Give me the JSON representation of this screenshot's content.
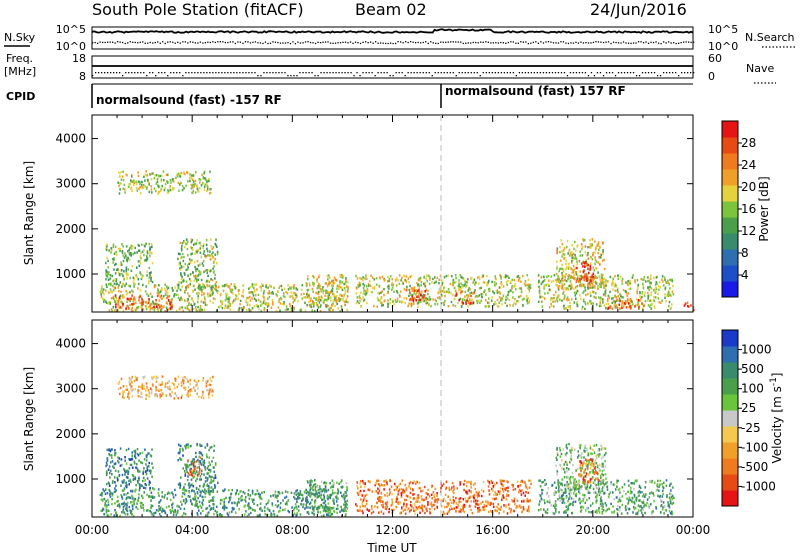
{
  "header": {
    "station": "South Pole Station (fitACF)",
    "beam": "Beam 02",
    "date": "24/Jun/2016"
  },
  "summary": {
    "nsky_label": "N.Sky",
    "nsearch_label": "N.Search",
    "nsky_ticks": [
      "10^5",
      "10^0"
    ],
    "nsearch_ticks": [
      "10^5",
      "10^0"
    ],
    "freq_label_1": "Freq.",
    "freq_label_2": "[MHz]",
    "freq_ticks": [
      "18",
      "8"
    ],
    "nave_label": "Nave",
    "nave_ticks": [
      "60",
      "0"
    ],
    "cpid_label": "CPID",
    "cpid_segments": [
      "normalsound (fast) -157 RF",
      "normalsound (fast) 157 RF"
    ]
  },
  "colors": {
    "power_scale": [
      "#1a1ae6",
      "#1f4fc8",
      "#2f6fb0",
      "#3a8a6e",
      "#4aa04a",
      "#7cc43c",
      "#e6d23c",
      "#f0a028",
      "#f07a1e",
      "#e84a14",
      "#e61414"
    ],
    "velocity_scale": [
      "#e61414",
      "#e84a14",
      "#f07a1e",
      "#f0a028",
      "#f5c850",
      "#c8c8c8",
      "#6ac43c",
      "#4aa04a",
      "#3a8a6e",
      "#2f6fb0",
      "#1a3ac8"
    ]
  },
  "chart_data": [
    {
      "type": "heatmap",
      "xlabel": "",
      "ylabel": "Slant Range [km]",
      "xlim": [
        "00:00",
        "24:00"
      ],
      "ylim": [
        180,
        4500
      ],
      "y_ticks": [
        "4000",
        "3000",
        "2000",
        "1000"
      ],
      "colorbar_label": "Power [dB]",
      "colorbar_ticks": [
        "28",
        "24",
        "20",
        "16",
        "12",
        "8",
        "4"
      ],
      "colorbar_range": [
        0,
        30
      ],
      "regions": [
        {
          "t0": 0.3,
          "t1": 10.2,
          "r0": 200,
          "r1": 800,
          "level": 0.55
        },
        {
          "t0": 0.8,
          "t1": 3.2,
          "r0": 250,
          "r1": 550,
          "level": 0.85
        },
        {
          "t0": 0.5,
          "t1": 2.4,
          "r0": 800,
          "r1": 1700,
          "level": 0.45
        },
        {
          "t0": 3.4,
          "t1": 5.0,
          "r0": 700,
          "r1": 1800,
          "level": 0.5
        },
        {
          "t0": 1.0,
          "t1": 4.8,
          "r0": 2800,
          "r1": 3300,
          "level": 0.55
        },
        {
          "t0": 8.5,
          "t1": 10.2,
          "r0": 300,
          "r1": 1000,
          "level": 0.6
        },
        {
          "t0": 10.5,
          "t1": 17.5,
          "r0": 300,
          "r1": 1000,
          "level": 0.55
        },
        {
          "t0": 12.5,
          "t1": 13.3,
          "r0": 350,
          "r1": 700,
          "level": 0.85
        },
        {
          "t0": 14.5,
          "t1": 15.3,
          "r0": 350,
          "r1": 650,
          "level": 0.85
        },
        {
          "t0": 17.8,
          "t1": 23.2,
          "r0": 250,
          "r1": 1000,
          "level": 0.55
        },
        {
          "t0": 18.5,
          "t1": 20.5,
          "r0": 700,
          "r1": 1800,
          "level": 0.6
        },
        {
          "t0": 19.3,
          "t1": 20.0,
          "r0": 800,
          "r1": 1300,
          "level": 0.9
        },
        {
          "t0": 20.5,
          "t1": 22.0,
          "r0": 250,
          "r1": 500,
          "level": 0.8
        },
        {
          "t0": 23.6,
          "t1": 24.0,
          "r0": 200,
          "r1": 400,
          "level": 0.9
        }
      ]
    },
    {
      "type": "heatmap",
      "xlabel": "Time UT",
      "ylabel": "Slant Range [km]",
      "xlim": [
        "00:00",
        "24:00"
      ],
      "ylim": [
        180,
        4500
      ],
      "x_ticks": [
        "00:00",
        "04:00",
        "08:00",
        "12:00",
        "16:00",
        "20:00",
        "00:00"
      ],
      "y_ticks": [
        "4000",
        "3000",
        "2000",
        "1000"
      ],
      "colorbar_label": "Velocity [m s^-1]",
      "colorbar_ticks": [
        "1000",
        "500",
        "100",
        "25",
        "-25",
        "-100",
        "-500",
        "-1000"
      ],
      "colorbar_range": [
        -1000,
        1000
      ],
      "regions": [
        {
          "t0": 0.3,
          "t1": 10.2,
          "r0": 200,
          "r1": 800,
          "level": 0.72
        },
        {
          "t0": 0.5,
          "t1": 2.4,
          "r0": 800,
          "r1": 1700,
          "level": 0.8
        },
        {
          "t0": 3.4,
          "t1": 5.0,
          "r0": 700,
          "r1": 1800,
          "level": 0.75
        },
        {
          "t0": 3.8,
          "t1": 4.3,
          "r0": 1100,
          "r1": 1500,
          "level": 0.2
        },
        {
          "t0": 1.0,
          "t1": 4.8,
          "r0": 2800,
          "r1": 3300,
          "level": 0.35
        },
        {
          "t0": 8.5,
          "t1": 10.2,
          "r0": 300,
          "r1": 1000,
          "level": 0.7
        },
        {
          "t0": 10.5,
          "t1": 17.5,
          "r0": 250,
          "r1": 1000,
          "level": 0.22
        },
        {
          "t0": 17.8,
          "t1": 23.2,
          "r0": 250,
          "r1": 1000,
          "level": 0.68
        },
        {
          "t0": 18.5,
          "t1": 20.5,
          "r0": 700,
          "r1": 1800,
          "level": 0.6
        },
        {
          "t0": 19.4,
          "t1": 20.2,
          "r0": 900,
          "r1": 1500,
          "level": 0.22
        }
      ]
    }
  ]
}
